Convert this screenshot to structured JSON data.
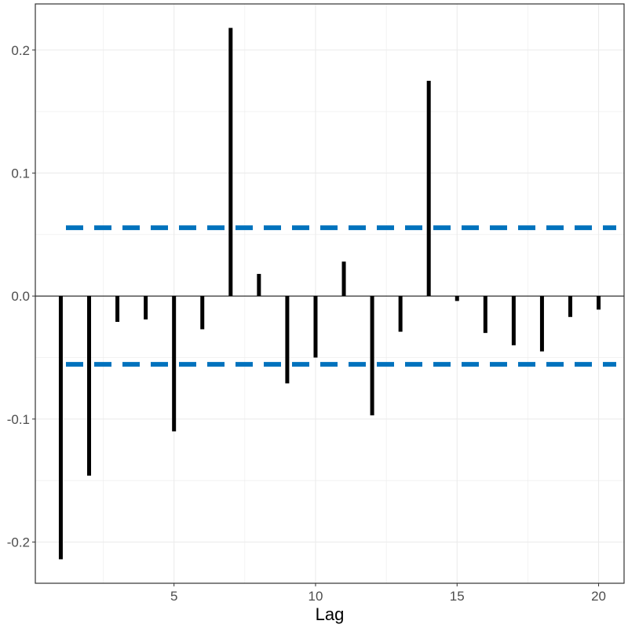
{
  "chart_data": {
    "type": "bar",
    "xlabel": "Lag",
    "ylabel": "",
    "x": [
      1,
      2,
      3,
      4,
      5,
      6,
      7,
      8,
      9,
      10,
      11,
      12,
      13,
      14,
      15,
      16,
      17,
      18,
      19,
      20
    ],
    "values": [
      -0.214,
      -0.146,
      -0.021,
      -0.019,
      -0.11,
      -0.027,
      0.218,
      0.018,
      -0.071,
      -0.05,
      0.028,
      -0.097,
      -0.029,
      0.175,
      -0.004,
      -0.03,
      -0.04,
      -0.045,
      -0.017,
      -0.011
    ],
    "confidence_bounds": [
      0.0555,
      -0.0555
    ],
    "xlim": [
      0.1,
      20.9
    ],
    "ylim": [
      -0.2335,
      0.2375
    ],
    "x_ticks": [
      "5",
      "10",
      "15",
      "20"
    ],
    "y_ticks": [
      "-0.2",
      "-0.1",
      "0.0",
      "0.1",
      "0.2"
    ],
    "grid": true,
    "colors": {
      "bars": "#000000",
      "bounds": "#0072bd",
      "grid": "#ebebeb",
      "border": "#333333"
    }
  }
}
